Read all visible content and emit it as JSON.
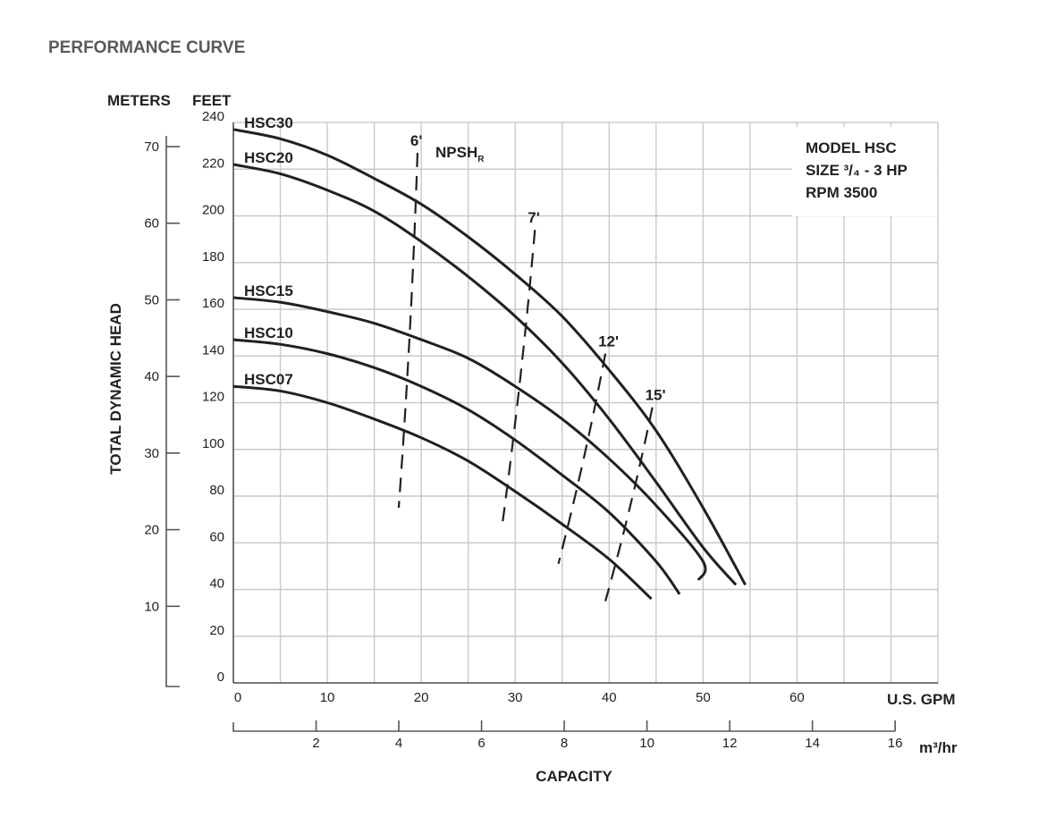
{
  "chart_data": {
    "type": "line",
    "title": "PERFORMANCE CURVE",
    "ylabel": "TOTAL DYNAMIC HEAD",
    "xlabel": "CAPACITY",
    "y_feet": {
      "unit_label": "FEET",
      "range": [
        0,
        240
      ],
      "ticks": [
        0,
        20,
        40,
        60,
        80,
        100,
        120,
        140,
        160,
        180,
        200,
        220,
        240
      ]
    },
    "y_meters": {
      "unit_label": "METERS",
      "ticks": [
        10,
        20,
        30,
        40,
        50,
        60,
        70
      ]
    },
    "x_gpm": {
      "unit_label": "U.S. GPM",
      "range": [
        0,
        75
      ],
      "ticks": [
        0,
        10,
        20,
        30,
        40,
        50,
        60
      ]
    },
    "x_m3hr": {
      "unit_label": "m³/hr",
      "ticks": [
        2,
        4,
        6,
        8,
        10,
        12,
        14,
        16
      ]
    },
    "grid": true,
    "info_box": {
      "line1": "MODEL HSC",
      "line2": "SIZE ³/₄ - 3 HP",
      "line3": "RPM 3500"
    },
    "series": [
      {
        "name": "HSC30",
        "x": [
          0,
          5,
          10,
          15,
          20,
          25,
          30,
          35,
          40,
          45,
          50,
          54.5
        ],
        "y": [
          237,
          233,
          226,
          216,
          205,
          191,
          175,
          157,
          134,
          108,
          75,
          42
        ]
      },
      {
        "name": "HSC20",
        "x": [
          0,
          5,
          10,
          15,
          20,
          25,
          30,
          35,
          40,
          45,
          50,
          53.5
        ],
        "y": [
          222,
          218,
          211,
          202,
          189,
          174,
          157,
          137,
          113,
          86,
          58,
          42
        ]
      },
      {
        "name": "HSC15",
        "x": [
          0,
          5,
          10,
          15,
          20,
          25,
          30,
          35,
          40,
          45,
          50,
          49.5
        ],
        "y": [
          165,
          163,
          159,
          154,
          147,
          139,
          127,
          113,
          96,
          76,
          52,
          44
        ]
      },
      {
        "name": "HSC10",
        "x": [
          0,
          5,
          10,
          15,
          20,
          25,
          30,
          35,
          40,
          45,
          47.5
        ],
        "y": [
          147,
          145,
          141,
          135,
          127,
          117,
          104,
          89,
          73,
          52,
          38
        ]
      },
      {
        "name": "HSC07",
        "x": [
          0,
          5,
          10,
          15,
          20,
          25,
          30,
          35,
          40,
          44.5
        ],
        "y": [
          127,
          125,
          120,
          113,
          105,
          95,
          82,
          68,
          53,
          36
        ]
      }
    ],
    "npsh_lines": [
      {
        "label": "6'",
        "x_top": 19.6,
        "y_top": 227,
        "x_bottom": 17.6,
        "y_bottom": 75
      },
      {
        "label": "7'",
        "x_top": 32.1,
        "y_top": 194,
        "x_bottom": 28.6,
        "y_bottom": 67
      },
      {
        "label": "12'",
        "x_top": 39.6,
        "y_top": 141,
        "x_bottom": 34.6,
        "y_bottom": 51
      },
      {
        "label": "15'",
        "x_top": 44.6,
        "y_top": 118,
        "x_bottom": 39.6,
        "y_bottom": 35
      }
    ],
    "npsh_title": {
      "text": "NPSH",
      "sub": "R"
    }
  }
}
